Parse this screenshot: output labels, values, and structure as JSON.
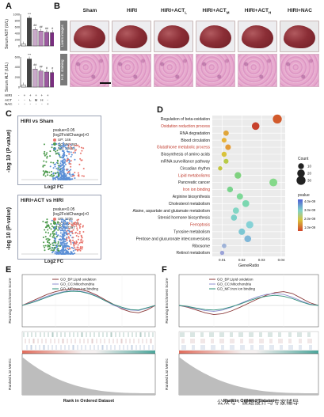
{
  "panels": {
    "a_letter": "A",
    "b_letter": "B",
    "c_letter": "C",
    "d_letter": "D",
    "e_letter": "E",
    "f_letter": "F"
  },
  "panel_a": {
    "top_ylabel": "Serum AST (U/L)",
    "bottom_ylabel": "Serum ALT (U/L)",
    "row_labels": [
      "HIRI",
      "ACT",
      "NAC"
    ],
    "row_values": [
      [
        "-",
        "+",
        "+",
        "+",
        "+",
        "+"
      ],
      [
        "-",
        "-",
        "L",
        "M",
        "H",
        "-"
      ],
      [
        "-",
        "-",
        "-",
        "-",
        "-",
        "+"
      ]
    ],
    "top_sig": [
      "***",
      "##",
      "##",
      "##",
      "#"
    ],
    "bottom_sig": [
      "***",
      "##",
      "##",
      "#",
      "#"
    ],
    "ticks_top": [
      "1000",
      "800",
      "600",
      "400",
      "200",
      "0"
    ],
    "ticks_bottom": [
      "600",
      "400",
      "200",
      "0"
    ],
    "ast_values": [
      60,
      880,
      520,
      470,
      430,
      420
    ],
    "alt_values": [
      40,
      560,
      360,
      320,
      300,
      290
    ]
  },
  "panel_b": {
    "columns": [
      "Sham",
      "HIRI",
      "HIRI+ACT",
      "HIRI+ACT",
      "HIRI+ACT",
      "HIRI+NAC"
    ],
    "col_subs": [
      "",
      "",
      "L",
      "M",
      "H",
      ""
    ],
    "row_livers": "Livers images",
    "row_he": "H.E. staining"
  },
  "panel_c_top": {
    "title": "HIRI vs Sham",
    "legend_title1": "pvalue<0.05",
    "legend_title2": "|log2FoldChange|>0",
    "legend": [
      {
        "label": "UP: 146",
        "color": "#e8756d"
      },
      {
        "label": "DOWN: 282",
        "color": "#4c9a4c"
      },
      {
        "label": "NO: 22655",
        "color": "#5b8fd6"
      }
    ],
    "ylabel": "-log 10 (P-value)",
    "xlabel": "Log2 FC"
  },
  "panel_c_bottom": {
    "title": "HIRI+ACT vs HIRI",
    "legend_title1": "pvalue<0.05",
    "legend_title2": "|log2FoldChange|>0",
    "legend": [
      {
        "label": "UP: 1236",
        "color": "#e8756d"
      },
      {
        "label": "DOWN: 1229",
        "color": "#4c9a4c"
      },
      {
        "label": "NO: 20397",
        "color": "#5b8fd6"
      }
    ],
    "ylabel": "-log 10 (P-value)",
    "xlabel": "Log2 FC"
  },
  "chart_data": [
    {
      "type": "scatter",
      "title": "",
      "xlabel": "GeneRatio",
      "ylabel": "",
      "xlim": [
        0.005,
        0.042
      ],
      "xticks": [
        "0.01",
        "0.02",
        "0.03",
        "0.04"
      ],
      "categories": [
        "Regulation of beta-oxidation",
        "Oxidation reduction process",
        "RNA degradation",
        "Blood circulation",
        "Glutathione metabolic process",
        "Biosynthesis of amino acids",
        "mRNA surveillance pathway",
        "Circadian rhythm",
        "Lipid metabolisms",
        "Pancreatic cancer",
        "Iron ion binding",
        "Arginine biosynthesis",
        "Cholesterol metabolism",
        "Alaine, aspartate and glutamate metabolism",
        "Steroid hormone biosynthesis",
        "Ferroptosis",
        "Tyrosine metabolism",
        "Pentose and glucuronate interconversions",
        "Ribosome",
        "Retinol metabolism"
      ],
      "highlight": [
        false,
        true,
        false,
        false,
        true,
        false,
        false,
        false,
        true,
        false,
        true,
        false,
        false,
        false,
        false,
        true,
        false,
        false,
        false,
        false
      ],
      "x": [
        0.038,
        0.027,
        0.012,
        0.011,
        0.013,
        0.011,
        0.012,
        0.009,
        0.018,
        0.036,
        0.014,
        0.019,
        0.022,
        0.017,
        0.016,
        0.024,
        0.02,
        0.023,
        0.011,
        0.01
      ],
      "count": [
        30,
        20,
        8,
        6,
        9,
        7,
        6,
        4,
        14,
        22,
        10,
        12,
        16,
        12,
        11,
        18,
        13,
        15,
        5,
        4
      ],
      "pvalue_color": [
        "#d25a2b",
        "#c7402b",
        "#e0a53a",
        "#e8b43c",
        "#e39b37",
        "#d9c33b",
        "#b8cb48",
        "#c3c53f",
        "#7fd17f",
        "#85d98a",
        "#7ad38d",
        "#7ed898",
        "#7bd7b0",
        "#83d6c4",
        "#7dd0c8",
        "#86d2d6",
        "#7cc7d3",
        "#7fb7d8",
        "#9fb3d8",
        "#9ba3d8"
      ],
      "size_legend_title": "Count",
      "size_legend": [
        "10",
        "20",
        "30"
      ],
      "color_legend_title": "pvalue",
      "color_legend_ticks": [
        "4.0e-09",
        "3.0e-09",
        "2.0e-09",
        "1.0e-09"
      ]
    },
    {
      "type": "line",
      "title": "",
      "ylabel": "Running Enrichment Score",
      "ylabel2": "Ranked List Metric",
      "xlabel": "Rank in Ordered Dataset",
      "series": [
        {
          "name": "GO_BP:Lipid oxidation",
          "color": "#8b3a3a",
          "values": [
            0,
            0.08,
            0.16,
            0.24,
            0.3,
            0.34,
            0.36,
            0.35,
            0.3,
            0.22,
            0.12,
            0.02,
            -0.08,
            -0.14,
            -0.16,
            -0.1,
            0
          ]
        },
        {
          "name": "GO_CC:Mitochondria",
          "color": "#8f8fd0",
          "values": [
            0,
            0.06,
            0.13,
            0.2,
            0.26,
            0.3,
            0.32,
            0.31,
            0.27,
            0.2,
            0.1,
            0.0,
            -0.06,
            -0.1,
            -0.11,
            -0.06,
            0
          ]
        },
        {
          "name": "GO_MF:Iron ion binding",
          "color": "#2f8f7a",
          "values": [
            0,
            0.05,
            0.11,
            0.18,
            0.24,
            0.29,
            0.31,
            0.3,
            0.26,
            0.19,
            0.1,
            0.02,
            -0.04,
            -0.09,
            -0.1,
            -0.05,
            0
          ]
        }
      ]
    },
    {
      "type": "line",
      "title": "",
      "ylabel": "Running Enrichment Score",
      "ylabel2": "Ranked List Metric",
      "xlabel": "Rank in Ordered Dataset",
      "series": [
        {
          "name": "GO_BP:Lipid oxidation",
          "color": "#8b3a3a",
          "values": [
            0,
            -0.04,
            -0.1,
            -0.16,
            -0.2,
            -0.18,
            -0.12,
            -0.04,
            0.05,
            0.14,
            0.22,
            0.28,
            0.3,
            0.26,
            0.16,
            0.06,
            0
          ]
        },
        {
          "name": "GO_CC:Mitochondria",
          "color": "#8f8fd0",
          "values": [
            0,
            -0.03,
            -0.07,
            -0.11,
            -0.13,
            -0.1,
            -0.04,
            0.04,
            0.12,
            0.19,
            0.24,
            0.26,
            0.24,
            0.18,
            0.1,
            0.03,
            0
          ]
        },
        {
          "name": "GO_MF:Iron ion binding",
          "color": "#2f8f7a",
          "values": [
            0,
            -0.02,
            -0.06,
            -0.09,
            -0.1,
            -0.08,
            -0.03,
            0.03,
            0.1,
            0.16,
            0.2,
            0.22,
            0.2,
            0.15,
            0.08,
            0.02,
            0
          ]
        }
      ]
    }
  ],
  "watermark": "公众号 · 课题设计与专家辅导"
}
